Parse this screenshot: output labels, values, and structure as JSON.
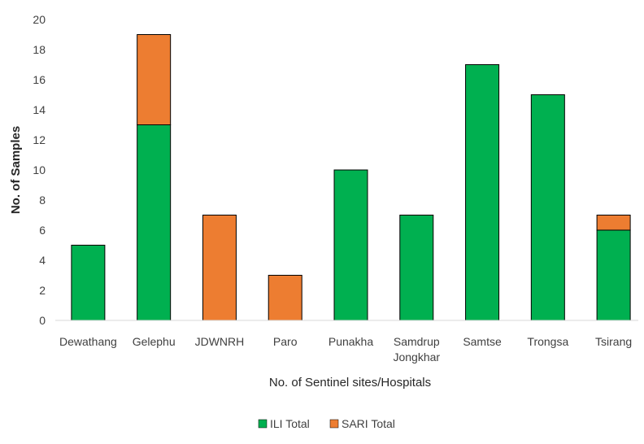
{
  "chart_data": {
    "type": "bar",
    "stacked": true,
    "categories": [
      "Dewathang",
      "Gelephu",
      "JDWNRH",
      "Paro",
      "Punakha",
      "Samdrup Jongkhar",
      "Samtse",
      "Trongsa",
      "Tsirang"
    ],
    "series": [
      {
        "name": "ILI Total",
        "color": "#00b050",
        "values": [
          5,
          13,
          0,
          0,
          10,
          7,
          17,
          15,
          6
        ]
      },
      {
        "name": "SARI Total",
        "color": "#ed7d31",
        "values": [
          0,
          6,
          7,
          3,
          0,
          0,
          0,
          0,
          1
        ]
      }
    ],
    "xlabel": "No. of Sentinel sites/Hospitals",
    "ylabel": "No. of Samples",
    "ylim": [
      0,
      20
    ],
    "yticks": [
      "0",
      "2",
      "4",
      "6",
      "8",
      "10",
      "12",
      "14",
      "16",
      "18",
      "20"
    ],
    "grid": false,
    "legend_position": "bottom"
  }
}
